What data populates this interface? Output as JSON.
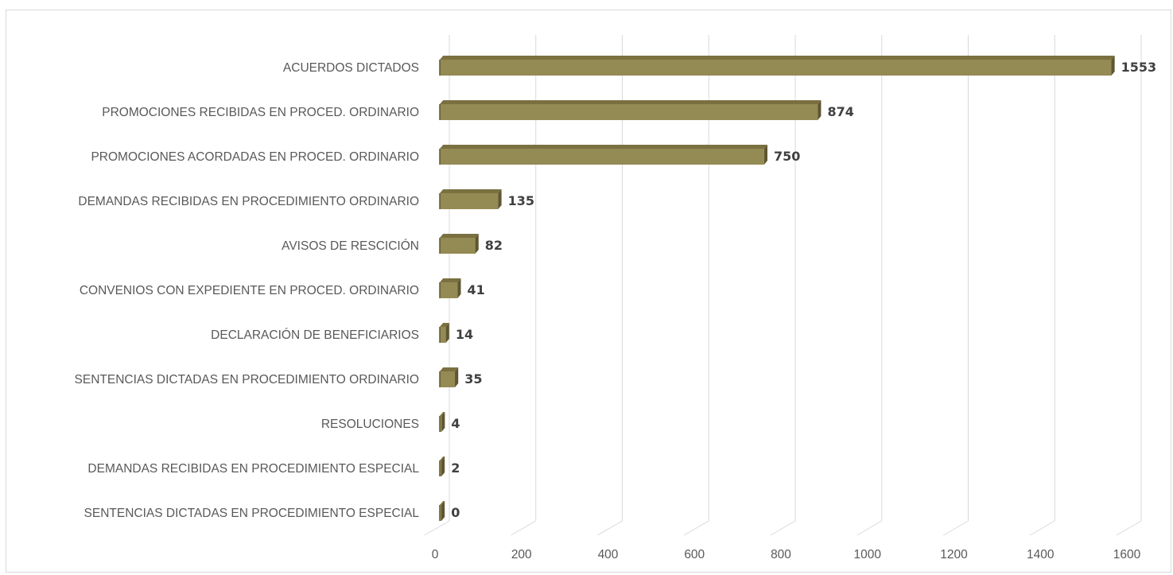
{
  "chart_data": {
    "type": "bar",
    "orientation": "horizontal",
    "style": "3d",
    "categories": [
      "ACUERDOS DICTADOS",
      "PROMOCIONES RECIBIDAS EN PROCED. ORDINARIO",
      "PROMOCIONES ACORDADAS EN PROCED. ORDINARIO",
      "DEMANDAS RECIBIDAS EN PROCEDIMIENTO ORDINARIO",
      "AVISOS DE RESCICIÓN",
      "CONVENIOS CON EXPEDIENTE EN PROCED. ORDINARIO",
      "DECLARACIÓN DE BENEFICIARIOS",
      "SENTENCIAS DICTADAS EN PROCEDIMIENTO ORDINARIO",
      "RESOLUCIONES",
      "DEMANDAS RECIBIDAS EN PROCEDIMIENTO ESPECIAL",
      "SENTENCIAS DICTADAS EN PROCEDIMIENTO ESPECIAL"
    ],
    "values": [
      1553,
      874,
      750,
      135,
      82,
      41,
      14,
      35,
      4,
      2,
      0
    ],
    "xlim": [
      0,
      1600
    ],
    "xticks": [
      "0",
      "200",
      "400",
      "600",
      "800",
      "1000",
      "1200",
      "1400",
      "1600"
    ],
    "title": "",
    "xlabel": "",
    "ylabel": "",
    "grid": "vertical",
    "legend": "none",
    "colors": {
      "bar_front": "#948a54",
      "bar_top": "#7a7040",
      "bar_side": "#5f5631",
      "grid": "#d9d9d9",
      "label": "#595959",
      "value_label": "#404040"
    }
  }
}
